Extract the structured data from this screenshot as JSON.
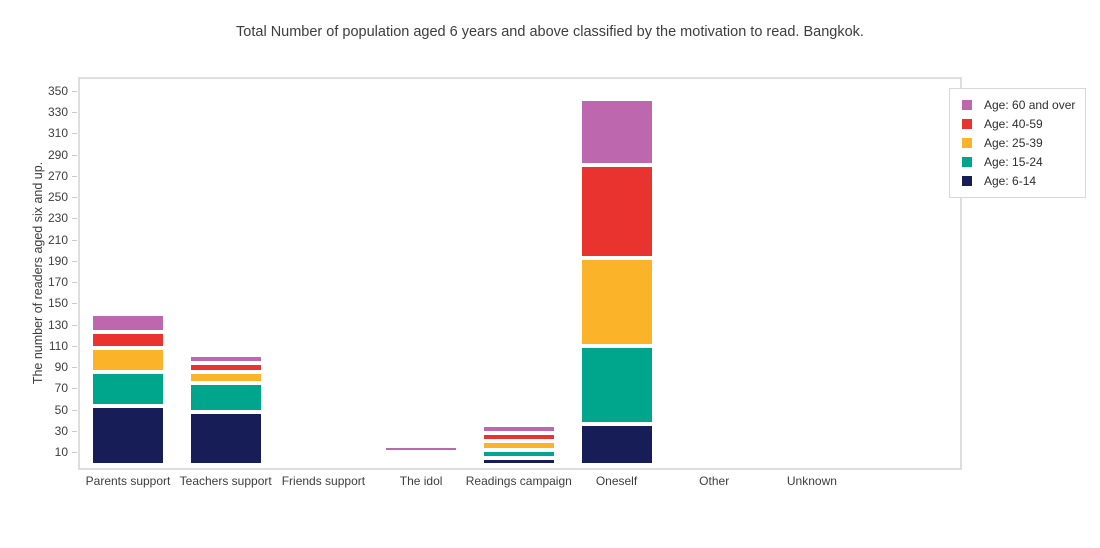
{
  "title": "Total Number of population aged 6 years and above classified by the motivation to read. Bangkok.",
  "chart_data": {
    "type": "bar",
    "stacked": true,
    "title": "Total Number of population aged 6 years and above classified by the motivation to read. Bangkok.",
    "xlabel": "",
    "ylabel": "The number of readers aged six and up.",
    "categories": [
      "Parents support",
      "Teachers support",
      "Friends support",
      "The idol",
      "Readings campaign",
      "Oneself",
      "Other",
      "Unknown"
    ],
    "series": [
      {
        "name": "Age: 6-14",
        "color": "#171d56",
        "values": [
          53,
          48,
          0,
          2,
          4,
          36,
          0,
          0
        ]
      },
      {
        "name": "Age: 15-24",
        "color": "#00a68c",
        "values": [
          32,
          27,
          0,
          2,
          8,
          74,
          0,
          0
        ]
      },
      {
        "name": "Age: 25-39",
        "color": "#fbb32a",
        "values": [
          23,
          10,
          0,
          3,
          8,
          83,
          0,
          0
        ]
      },
      {
        "name": "Age: 40-59",
        "color": "#e8332e",
        "values": [
          15,
          9,
          0,
          3,
          8,
          87,
          0,
          0
        ]
      },
      {
        "name": "Age: 60 and over",
        "color": "#bd67ae",
        "values": [
          17,
          7,
          0,
          6,
          7,
          62,
          0,
          0
        ]
      }
    ],
    "totals_by_category": [
      140,
      101,
      0,
      16,
      35,
      342,
      0,
      0
    ],
    "yticks": [
      10,
      30,
      50,
      70,
      90,
      110,
      130,
      150,
      170,
      190,
      210,
      230,
      250,
      270,
      290,
      310,
      330,
      350
    ],
    "ylim": [
      -8,
      366
    ],
    "grid": false,
    "legend_position": "top-right",
    "legend_entries_top_to_bottom": [
      "Age: 60 and over",
      "Age: 40-59",
      "Age: 25-39",
      "Age: 15-24",
      "Age: 6-14"
    ],
    "segment_gap_color": "#ffffff",
    "plot_border_color": "#dedede",
    "background_color": "#ffffff"
  }
}
